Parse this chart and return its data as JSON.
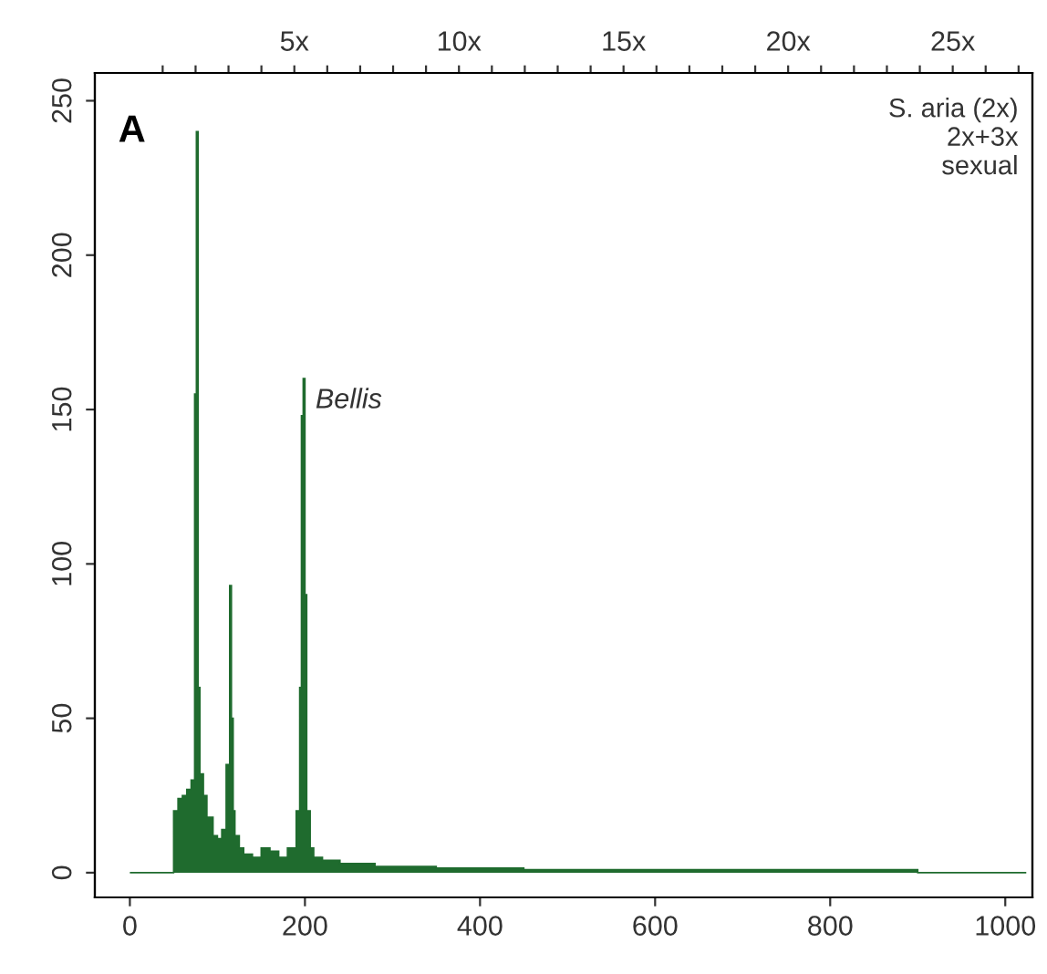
{
  "chart_data": {
    "type": "histogram",
    "bins": [
      0,
      50,
      55,
      60,
      65,
      70,
      74,
      76,
      78,
      80,
      84,
      88,
      95,
      100,
      105,
      110,
      114,
      116,
      118,
      120,
      125,
      130,
      140,
      150,
      160,
      170,
      180,
      190,
      194,
      196,
      198,
      200,
      202,
      206,
      210,
      220,
      240,
      260,
      280,
      300,
      350,
      400,
      450,
      500,
      600,
      700,
      800,
      900,
      1024
    ],
    "values": [
      0,
      20,
      24,
      25,
      27,
      30,
      155,
      240,
      60,
      32,
      25,
      18,
      12,
      11,
      14,
      35,
      93,
      50,
      20,
      12,
      8,
      6,
      5,
      8,
      7,
      5,
      8,
      20,
      60,
      148,
      160,
      90,
      20,
      8,
      5,
      4,
      3,
      3,
      2,
      2,
      1.5,
      1.5,
      1,
      1,
      1,
      1,
      1,
      0
    ],
    "color": "#1f6b2e",
    "xlim": [
      -40,
      1031
    ],
    "xticks": [
      0,
      200,
      400,
      600,
      800,
      1000
    ],
    "ylim": [
      -8,
      259
    ],
    "yticks": [
      0,
      50,
      100,
      150,
      200,
      250
    ],
    "x2lim": [
      -1.06,
      27.42
    ],
    "x2ticks": [
      {
        "value": 1,
        "label": null
      },
      {
        "value": 2,
        "label": null
      },
      {
        "value": 3,
        "label": null
      },
      {
        "value": 4,
        "label": null
      },
      {
        "value": 5,
        "label": "5x"
      },
      {
        "value": 6,
        "label": null
      },
      {
        "value": 7,
        "label": null
      },
      {
        "value": 8,
        "label": null
      },
      {
        "value": 9,
        "label": null
      },
      {
        "value": 10,
        "label": "10x"
      },
      {
        "value": 11,
        "label": null
      },
      {
        "value": 12,
        "label": null
      },
      {
        "value": 13,
        "label": null
      },
      {
        "value": 14,
        "label": null
      },
      {
        "value": 15,
        "label": "15x"
      },
      {
        "value": 16,
        "label": null
      },
      {
        "value": 17,
        "label": null
      },
      {
        "value": 18,
        "label": null
      },
      {
        "value": 19,
        "label": null
      },
      {
        "value": 20,
        "label": "20x"
      },
      {
        "value": 21,
        "label": null
      },
      {
        "value": 22,
        "label": null
      },
      {
        "value": 23,
        "label": null
      },
      {
        "value": 24,
        "label": null
      },
      {
        "value": 25,
        "label": "25x"
      },
      {
        "value": 26,
        "label": null
      },
      {
        "value": 27,
        "label": null
      }
    ],
    "grid": false,
    "legend": false,
    "annotations": [
      "A",
      {
        "text": "Bellis",
        "x": 200,
        "y": 160
      },
      "S. aria (2x)\n2x+3x\nsexual"
    ]
  }
}
